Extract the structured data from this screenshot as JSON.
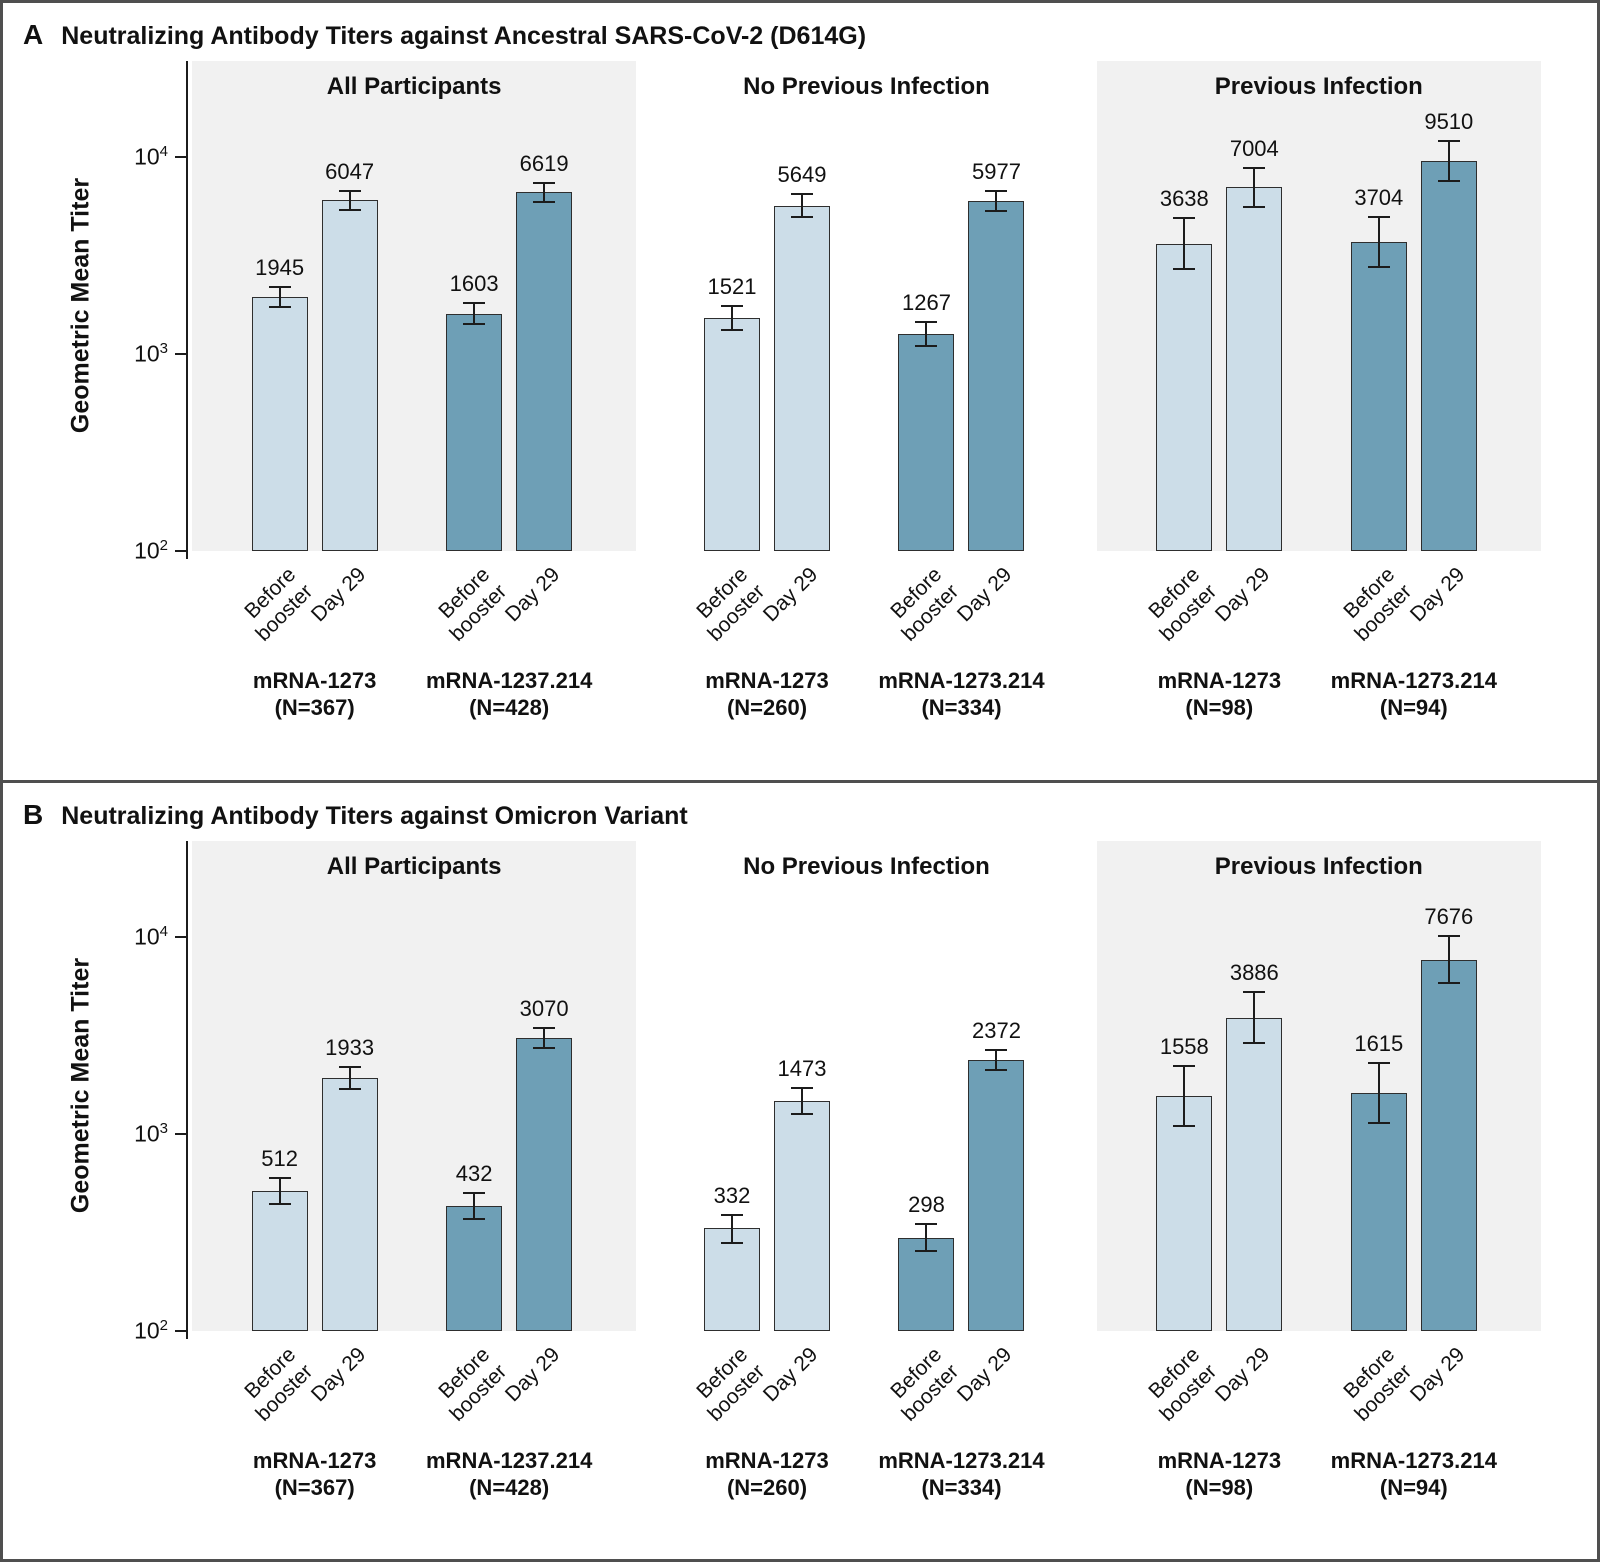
{
  "figure": {
    "x_tick_labels": [
      [
        "Before",
        "booster"
      ],
      [
        "Day 29"
      ]
    ],
    "y_ticks": [
      {
        "base": "10",
        "exp": "4",
        "value": 10000
      },
      {
        "base": "10",
        "exp": "3",
        "value": 1000
      },
      {
        "base": "10",
        "exp": "2",
        "value": 100
      }
    ],
    "colors": {
      "light_bar": "#ccdde8",
      "dark_bar": "#6e9fb6",
      "bar_border": "#2e2e2e",
      "error_bar": "#1c1c1c",
      "group_bg_shaded": "#f1f1f1",
      "panel_border": "#4f4f4f"
    }
  },
  "chart_data": [
    {
      "type": "bar",
      "panel_letter": "A",
      "title": "Neutralizing Antibody Titers against Ancestral SARS-CoV-2 (D614G)",
      "ylabel": "Geometric Mean Titer",
      "yscale": "log",
      "ylim": [
        100,
        28000
      ],
      "x": [
        "Before booster",
        "Day 29"
      ],
      "legend_position": "none",
      "grid": false,
      "groups": [
        {
          "label": "All Participants",
          "shaded": true,
          "series": [
            {
              "name": "mRNA-1273",
              "n_label": "(N=367)",
              "color": "light",
              "values": [
                {
                  "x": "Before booster",
                  "gmt": 1945,
                  "lo": 1730,
                  "hi": 2190
                },
                {
                  "x": "Day 29",
                  "gmt": 6047,
                  "lo": 5410,
                  "hi": 6760
                }
              ]
            },
            {
              "name": "mRNA-1237.214",
              "n_label": "(N=428)",
              "color": "dark",
              "values": [
                {
                  "x": "Before booster",
                  "gmt": 1603,
                  "lo": 1420,
                  "hi": 1810
                },
                {
                  "x": "Day 29",
                  "gmt": 6619,
                  "lo": 5940,
                  "hi": 7380
                }
              ]
            }
          ]
        },
        {
          "label": "No Previous Infection",
          "shaded": false,
          "series": [
            {
              "name": "mRNA-1273",
              "n_label": "(N=260)",
              "color": "light",
              "values": [
                {
                  "x": "Before booster",
                  "gmt": 1521,
                  "lo": 1320,
                  "hi": 1750
                },
                {
                  "x": "Day 29",
                  "gmt": 5649,
                  "lo": 4940,
                  "hi": 6460
                }
              ]
            },
            {
              "name": "mRNA-1273.214",
              "n_label": "(N=334)",
              "color": "dark",
              "values": [
                {
                  "x": "Before booster",
                  "gmt": 1267,
                  "lo": 1100,
                  "hi": 1460
                },
                {
                  "x": "Day 29",
                  "gmt": 5977,
                  "lo": 5320,
                  "hi": 6720
                }
              ]
            }
          ]
        },
        {
          "label": "Previous Infection",
          "shaded": true,
          "series": [
            {
              "name": "mRNA-1273",
              "n_label": "(N=98)",
              "color": "light",
              "values": [
                {
                  "x": "Before booster",
                  "gmt": 3638,
                  "lo": 2710,
                  "hi": 4890
                },
                {
                  "x": "Day 29",
                  "gmt": 7004,
                  "lo": 5550,
                  "hi": 8840
                }
              ]
            },
            {
              "name": "mRNA-1273.214",
              "n_label": "(N=94)",
              "color": "dark",
              "values": [
                {
                  "x": "Before booster",
                  "gmt": 3704,
                  "lo": 2770,
                  "hi": 4950
                },
                {
                  "x": "Day 29",
                  "gmt": 9510,
                  "lo": 7540,
                  "hi": 12000
                }
              ]
            }
          ]
        }
      ]
    },
    {
      "type": "bar",
      "panel_letter": "B",
      "title": "Neutralizing Antibody Titers against Omicron Variant",
      "ylabel": "Geometric Mean Titer",
      "yscale": "log",
      "ylim": [
        100,
        28000
      ],
      "x": [
        "Before booster",
        "Day 29"
      ],
      "legend_position": "none",
      "grid": false,
      "groups": [
        {
          "label": "All Participants",
          "shaded": true,
          "series": [
            {
              "name": "mRNA-1273",
              "n_label": "(N=367)",
              "color": "light",
              "values": [
                {
                  "x": "Before booster",
                  "gmt": 512,
                  "lo": 440,
                  "hi": 600
                },
                {
                  "x": "Day 29",
                  "gmt": 1933,
                  "lo": 1700,
                  "hi": 2200
                }
              ]
            },
            {
              "name": "mRNA-1237.214",
              "n_label": "(N=428)",
              "color": "dark",
              "values": [
                {
                  "x": "Before booster",
                  "gmt": 432,
                  "lo": 370,
                  "hi": 500
                },
                {
                  "x": "Day 29",
                  "gmt": 3070,
                  "lo": 2720,
                  "hi": 3470
                }
              ]
            }
          ]
        },
        {
          "label": "No Previous Infection",
          "shaded": false,
          "series": [
            {
              "name": "mRNA-1273",
              "n_label": "(N=260)",
              "color": "light",
              "values": [
                {
                  "x": "Before booster",
                  "gmt": 332,
                  "lo": 280,
                  "hi": 390
                },
                {
                  "x": "Day 29",
                  "gmt": 1473,
                  "lo": 1270,
                  "hi": 1710
                }
              ]
            },
            {
              "name": "mRNA-1273.214",
              "n_label": "(N=334)",
              "color": "dark",
              "values": [
                {
                  "x": "Before booster",
                  "gmt": 298,
                  "lo": 255,
                  "hi": 350
                },
                {
                  "x": "Day 29",
                  "gmt": 2372,
                  "lo": 2110,
                  "hi": 2670
                }
              ]
            }
          ]
        },
        {
          "label": "Previous Infection",
          "shaded": true,
          "series": [
            {
              "name": "mRNA-1273",
              "n_label": "(N=98)",
              "color": "light",
              "values": [
                {
                  "x": "Before booster",
                  "gmt": 1558,
                  "lo": 1100,
                  "hi": 2210
                },
                {
                  "x": "Day 29",
                  "gmt": 3886,
                  "lo": 2890,
                  "hi": 5230
                }
              ]
            },
            {
              "name": "mRNA-1273.214",
              "n_label": "(N=94)",
              "color": "dark",
              "values": [
                {
                  "x": "Before booster",
                  "gmt": 1615,
                  "lo": 1140,
                  "hi": 2290
                },
                {
                  "x": "Day 29",
                  "gmt": 7676,
                  "lo": 5810,
                  "hi": 10140
                }
              ]
            }
          ]
        }
      ]
    }
  ]
}
